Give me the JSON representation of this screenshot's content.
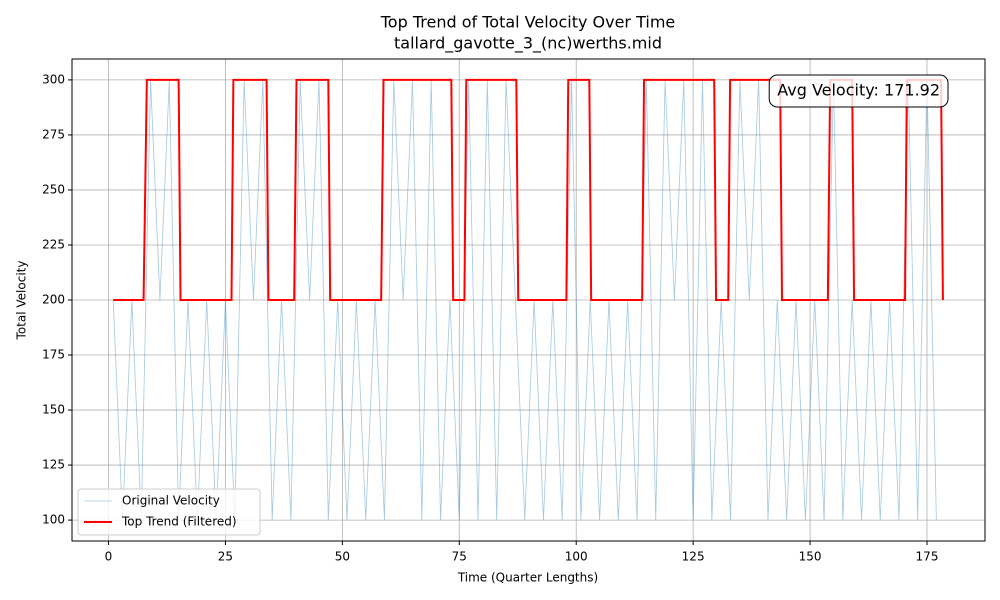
{
  "chart_data": {
    "type": "line",
    "title": "Top Trend of Total Velocity Over Time",
    "subtitle": "tallard_gavotte_3_(nc)werths.mid",
    "x_label": "Time (Quarter Lengths)",
    "y_label": "Total Velocity",
    "annotation": "Avg Velocity: 171.92",
    "xlim": [
      -7.8,
      187.4
    ],
    "ylim": [
      90.5,
      309.5
    ],
    "xticks": [
      0,
      25,
      50,
      75,
      100,
      125,
      150,
      175
    ],
    "yticks": [
      100,
      125,
      150,
      175,
      200,
      225,
      250,
      275,
      300
    ],
    "grid": true,
    "legend": "lower left",
    "series": [
      {
        "name": "Original Velocity",
        "color": "#1f77b4",
        "width": 0.8,
        "opacity": 0.4,
        "x": [
          1,
          3,
          5,
          7,
          9,
          11,
          13,
          15,
          17,
          19,
          21,
          23,
          25,
          27,
          29,
          31,
          33,
          35,
          37,
          39,
          41,
          43,
          45,
          47,
          49,
          51,
          53,
          55,
          57,
          59,
          61,
          63,
          65,
          67,
          69,
          71,
          73,
          75,
          77,
          79,
          81,
          83,
          85,
          87,
          89,
          91,
          93,
          95,
          97,
          99,
          101,
          103,
          105,
          107,
          109,
          111,
          113,
          115,
          117,
          119,
          121,
          123,
          125,
          127,
          129,
          131,
          133,
          135,
          137,
          139,
          141,
          143,
          145,
          147,
          149,
          151,
          153,
          155,
          157,
          159,
          161,
          163,
          165,
          167,
          169,
          171,
          173,
          175,
          177
        ],
        "values": [
          200,
          100,
          200,
          100,
          300,
          200,
          300,
          100,
          200,
          100,
          200,
          100,
          200,
          100,
          300,
          200,
          300,
          100,
          200,
          100,
          300,
          200,
          300,
          100,
          200,
          100,
          200,
          100,
          200,
          100,
          300,
          200,
          300,
          100,
          300,
          100,
          200,
          100,
          300,
          100,
          300,
          100,
          300,
          200,
          100,
          200,
          100,
          200,
          100,
          300,
          100,
          200,
          100,
          200,
          100,
          200,
          100,
          300,
          100,
          300,
          200,
          300,
          100,
          300,
          100,
          200,
          100,
          300,
          200,
          300,
          100,
          200,
          100,
          200,
          100,
          200,
          100,
          300,
          100,
          200,
          100,
          200,
          100,
          200,
          100,
          300,
          100,
          300,
          100
        ]
      },
      {
        "name": "Top Trend (Filtered)",
        "color": "#ff0000",
        "width": 2,
        "opacity": 1,
        "x": [
          1,
          7.5,
          8.2,
          15,
          15.4,
          26.3,
          26.7,
          33.8,
          34.2,
          39.7,
          40.2,
          47,
          47.4,
          58.3,
          58.8,
          73.3,
          73.7,
          76.1,
          76.5,
          87.2,
          87.6,
          97.9,
          98.3,
          102.8,
          103.2,
          114.1,
          114.5,
          129.5,
          129.9,
          132.5,
          132.9,
          143.6,
          144,
          153.8,
          154.3,
          159,
          159.4,
          170.3,
          170.7,
          178,
          178.4
        ],
        "values": [
          200,
          200,
          300,
          300,
          200,
          200,
          300,
          300,
          200,
          200,
          300,
          300,
          200,
          200,
          300,
          300,
          200,
          200,
          300,
          300,
          200,
          200,
          300,
          300,
          200,
          200,
          300,
          300,
          200,
          200,
          300,
          300,
          200,
          200,
          300,
          300,
          200,
          200,
          300,
          300,
          200
        ]
      }
    ]
  }
}
